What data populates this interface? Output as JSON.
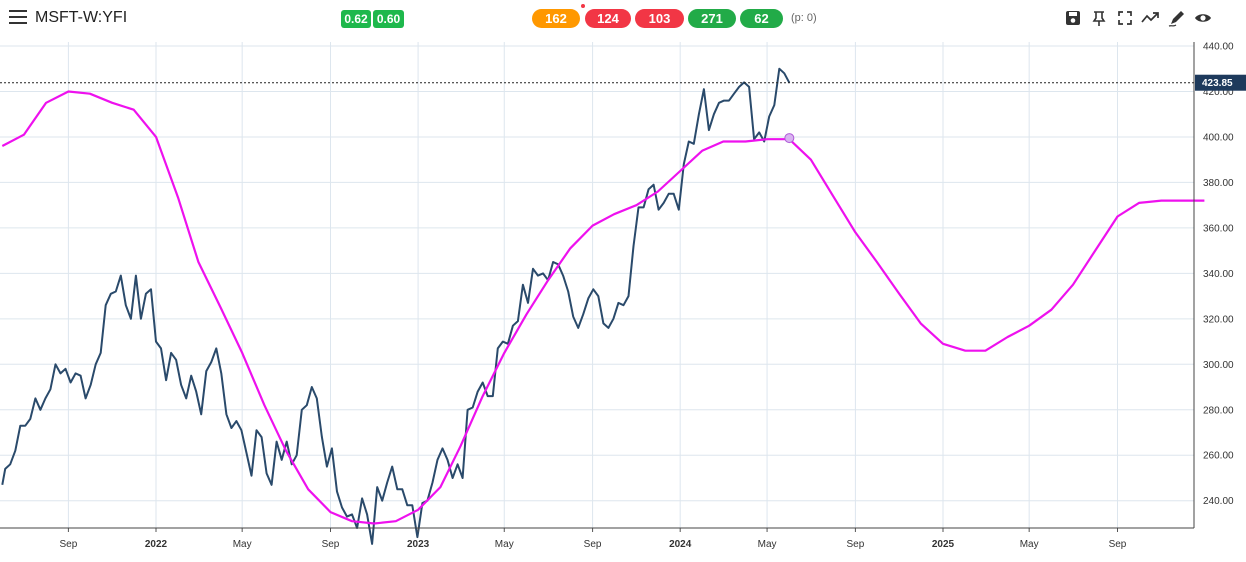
{
  "header": {
    "symbol": "MSFT-W:YFI",
    "badge1": "0.62",
    "badge2": "0.60",
    "pills": [
      {
        "label": "162",
        "color": "#ff9800"
      },
      {
        "label": "124",
        "color": "#f23645"
      },
      {
        "label": "103",
        "color": "#f23645"
      },
      {
        "label": "271",
        "color": "#22ab48"
      },
      {
        "label": "62",
        "color": "#22ab48"
      }
    ],
    "p_status": "(p: 0)",
    "tools": [
      "save-icon",
      "pin-icon",
      "fullscreen-icon",
      "trend-icon",
      "draw-icon",
      "eye-icon"
    ]
  },
  "chart_data": {
    "type": "line",
    "price_label": "423.85",
    "x_ticks": [
      {
        "label": "Sep",
        "x": "2021-09-01"
      },
      {
        "label": "2022",
        "x": "2022-01-01",
        "bold": true
      },
      {
        "label": "May",
        "x": "2022-05-01"
      },
      {
        "label": "Sep",
        "x": "2022-09-01"
      },
      {
        "label": "2023",
        "x": "2023-01-01",
        "bold": true
      },
      {
        "label": "May",
        "x": "2023-05-01"
      },
      {
        "label": "Sep",
        "x": "2023-09-01"
      },
      {
        "label": "2024",
        "x": "2024-01-01",
        "bold": true
      },
      {
        "label": "May",
        "x": "2024-05-01"
      },
      {
        "label": "Sep",
        "x": "2024-09-01"
      },
      {
        "label": "2025",
        "x": "2025-01-01",
        "bold": true
      },
      {
        "label": "May",
        "x": "2025-05-01"
      },
      {
        "label": "Sep",
        "x": "2025-09-01"
      }
    ],
    "y_ticks": [
      "440.00",
      "420.00",
      "400.00",
      "380.00",
      "360.00",
      "340.00",
      "320.00",
      "300.00",
      "280.00",
      "260.00",
      "240.00"
    ],
    "y_range": [
      220,
      442
    ],
    "x_range": [
      "2021-06-01",
      "2025-12-31"
    ],
    "colors": {
      "price": "#2a4a6b",
      "cycle": "#ee11ee",
      "grid": "#dde6ee",
      "label_bg": "#1e3a5c"
    },
    "series": [
      {
        "color": "#2a4a6b",
        "points": [
          [
            "2021-06-01",
            247
          ],
          [
            "2021-06-05",
            254
          ],
          [
            "2021-06-12",
            256
          ],
          [
            "2021-06-19",
            262
          ],
          [
            "2021-06-26",
            273
          ],
          [
            "2021-07-03",
            273
          ],
          [
            "2021-07-10",
            276
          ],
          [
            "2021-07-17",
            285
          ],
          [
            "2021-07-24",
            280
          ],
          [
            "2021-07-31",
            285
          ],
          [
            "2021-08-07",
            289
          ],
          [
            "2021-08-14",
            300
          ],
          [
            "2021-08-21",
            296
          ],
          [
            "2021-08-28",
            298
          ],
          [
            "2021-09-04",
            292
          ],
          [
            "2021-09-11",
            296
          ],
          [
            "2021-09-18",
            295
          ],
          [
            "2021-09-25",
            285
          ],
          [
            "2021-10-02",
            291
          ],
          [
            "2021-10-09",
            300
          ],
          [
            "2021-10-16",
            305
          ],
          [
            "2021-10-23",
            326
          ],
          [
            "2021-10-30",
            331
          ],
          [
            "2021-11-06",
            332
          ],
          [
            "2021-11-13",
            339
          ],
          [
            "2021-11-20",
            326
          ],
          [
            "2021-11-27",
            320
          ],
          [
            "2021-12-04",
            339
          ],
          [
            "2021-12-11",
            320
          ],
          [
            "2021-12-18",
            331
          ],
          [
            "2021-12-25",
            333
          ],
          [
            "2022-01-01",
            310
          ],
          [
            "2022-01-08",
            307
          ],
          [
            "2022-01-15",
            293
          ],
          [
            "2022-01-22",
            305
          ],
          [
            "2022-01-29",
            302
          ],
          [
            "2022-02-05",
            291
          ],
          [
            "2022-02-12",
            285
          ],
          [
            "2022-02-19",
            295
          ],
          [
            "2022-02-26",
            288
          ],
          [
            "2022-03-05",
            278
          ],
          [
            "2022-03-12",
            297
          ],
          [
            "2022-03-19",
            301
          ],
          [
            "2022-03-26",
            307
          ],
          [
            "2022-04-02",
            296
          ],
          [
            "2022-04-09",
            278
          ],
          [
            "2022-04-16",
            272
          ],
          [
            "2022-04-23",
            275
          ],
          [
            "2022-04-30",
            271
          ],
          [
            "2022-05-07",
            261
          ],
          [
            "2022-05-14",
            251
          ],
          [
            "2022-05-21",
            271
          ],
          [
            "2022-05-28",
            268
          ],
          [
            "2022-06-04",
            252
          ],
          [
            "2022-06-11",
            247
          ],
          [
            "2022-06-18",
            266
          ],
          [
            "2022-06-25",
            258
          ],
          [
            "2022-07-02",
            266
          ],
          [
            "2022-07-09",
            256
          ],
          [
            "2022-07-16",
            260
          ],
          [
            "2022-07-23",
            280
          ],
          [
            "2022-07-30",
            282
          ],
          [
            "2022-08-06",
            290
          ],
          [
            "2022-08-13",
            285
          ],
          [
            "2022-08-20",
            268
          ],
          [
            "2022-08-27",
            255
          ],
          [
            "2022-09-03",
            263
          ],
          [
            "2022-09-10",
            244
          ],
          [
            "2022-09-17",
            237
          ],
          [
            "2022-09-24",
            233
          ],
          [
            "2022-10-01",
            234
          ],
          [
            "2022-10-08",
            228
          ],
          [
            "2022-10-15",
            241
          ],
          [
            "2022-10-22",
            234
          ],
          [
            "2022-10-29",
            221
          ],
          [
            "2022-11-05",
            246
          ],
          [
            "2022-11-12",
            240
          ],
          [
            "2022-11-19",
            248
          ],
          [
            "2022-11-26",
            255
          ],
          [
            "2022-12-03",
            245
          ],
          [
            "2022-12-10",
            245
          ],
          [
            "2022-12-17",
            238
          ],
          [
            "2022-12-24",
            238
          ],
          [
            "2022-12-31",
            224
          ],
          [
            "2023-01-07",
            239
          ],
          [
            "2023-01-14",
            240
          ],
          [
            "2023-01-21",
            248
          ],
          [
            "2023-01-28",
            258
          ],
          [
            "2023-02-04",
            263
          ],
          [
            "2023-02-11",
            258
          ],
          [
            "2023-02-18",
            250
          ],
          [
            "2023-02-25",
            256
          ],
          [
            "2023-03-04",
            250
          ],
          [
            "2023-03-11",
            280
          ],
          [
            "2023-03-18",
            281
          ],
          [
            "2023-03-25",
            288
          ],
          [
            "2023-04-01",
            292
          ],
          [
            "2023-04-08",
            286
          ],
          [
            "2023-04-15",
            286
          ],
          [
            "2023-04-22",
            307
          ],
          [
            "2023-04-29",
            310
          ],
          [
            "2023-05-06",
            309
          ],
          [
            "2023-05-13",
            317
          ],
          [
            "2023-05-20",
            319
          ],
          [
            "2023-05-27",
            335
          ],
          [
            "2023-06-03",
            327
          ],
          [
            "2023-06-10",
            342
          ],
          [
            "2023-06-17",
            339
          ],
          [
            "2023-06-24",
            340
          ],
          [
            "2023-07-01",
            337
          ],
          [
            "2023-07-08",
            345
          ],
          [
            "2023-07-15",
            344
          ],
          [
            "2023-07-22",
            339
          ],
          [
            "2023-07-29",
            332
          ],
          [
            "2023-08-05",
            321
          ],
          [
            "2023-08-12",
            316
          ],
          [
            "2023-08-19",
            322
          ],
          [
            "2023-08-26",
            329
          ],
          [
            "2023-09-02",
            333
          ],
          [
            "2023-09-09",
            330
          ],
          [
            "2023-09-16",
            318
          ],
          [
            "2023-09-23",
            316
          ],
          [
            "2023-09-30",
            320
          ],
          [
            "2023-10-07",
            327
          ],
          [
            "2023-10-14",
            326
          ],
          [
            "2023-10-21",
            330
          ],
          [
            "2023-10-28",
            352
          ],
          [
            "2023-11-04",
            369
          ],
          [
            "2023-11-11",
            369
          ],
          [
            "2023-11-18",
            377
          ],
          [
            "2023-11-25",
            379
          ],
          [
            "2023-12-02",
            368
          ],
          [
            "2023-12-09",
            371
          ],
          [
            "2023-12-16",
            375
          ],
          [
            "2023-12-23",
            375
          ],
          [
            "2023-12-30",
            368
          ],
          [
            "2024-01-06",
            388
          ],
          [
            "2024-01-13",
            398
          ],
          [
            "2024-01-20",
            397
          ],
          [
            "2024-01-27",
            410
          ],
          [
            "2024-02-03",
            421
          ],
          [
            "2024-02-10",
            403
          ],
          [
            "2024-02-17",
            410
          ],
          [
            "2024-02-24",
            415
          ],
          [
            "2024-03-02",
            416
          ],
          [
            "2024-03-09",
            416
          ],
          [
            "2024-03-16",
            419
          ],
          [
            "2024-03-23",
            422
          ],
          [
            "2024-03-30",
            424
          ],
          [
            "2024-04-06",
            422
          ],
          [
            "2024-04-13",
            399
          ],
          [
            "2024-04-20",
            402
          ],
          [
            "2024-04-27",
            398
          ],
          [
            "2024-05-04",
            409
          ],
          [
            "2024-05-11",
            414
          ],
          [
            "2024-05-18",
            430
          ],
          [
            "2024-05-25",
            428
          ],
          [
            "2024-06-01",
            423.85
          ]
        ]
      },
      {
        "color": "#ee11ee",
        "points": [
          [
            "2021-06-01",
            396
          ],
          [
            "2021-07-01",
            401
          ],
          [
            "2021-08-01",
            415
          ],
          [
            "2021-09-01",
            420
          ],
          [
            "2021-10-01",
            419
          ],
          [
            "2021-11-01",
            415
          ],
          [
            "2021-12-01",
            412
          ],
          [
            "2022-01-01",
            400
          ],
          [
            "2022-02-01",
            373
          ],
          [
            "2022-03-01",
            345
          ],
          [
            "2022-04-01",
            325
          ],
          [
            "2022-05-01",
            305
          ],
          [
            "2022-06-01",
            282
          ],
          [
            "2022-07-01",
            262
          ],
          [
            "2022-08-01",
            245
          ],
          [
            "2022-09-01",
            235
          ],
          [
            "2022-10-01",
            231
          ],
          [
            "2022-11-01",
            230
          ],
          [
            "2022-12-01",
            231
          ],
          [
            "2023-01-01",
            236
          ],
          [
            "2023-02-01",
            246
          ],
          [
            "2023-03-01",
            264
          ],
          [
            "2023-04-01",
            286
          ],
          [
            "2023-05-01",
            305
          ],
          [
            "2023-06-01",
            322
          ],
          [
            "2023-07-01",
            337
          ],
          [
            "2023-08-01",
            351
          ],
          [
            "2023-09-01",
            361
          ],
          [
            "2023-10-01",
            366
          ],
          [
            "2023-11-01",
            370
          ],
          [
            "2023-12-01",
            376
          ],
          [
            "2024-01-01",
            385
          ],
          [
            "2024-02-01",
            394
          ],
          [
            "2024-03-01",
            398
          ],
          [
            "2024-04-01",
            398
          ],
          [
            "2024-05-01",
            399
          ],
          [
            "2024-06-01",
            399
          ],
          [
            "2024-07-01",
            390
          ],
          [
            "2024-08-01",
            374
          ],
          [
            "2024-09-01",
            358
          ],
          [
            "2024-10-01",
            345
          ],
          [
            "2024-11-01",
            331
          ],
          [
            "2024-12-01",
            318
          ],
          [
            "2025-01-01",
            309
          ],
          [
            "2025-02-01",
            306
          ],
          [
            "2025-03-01",
            306
          ],
          [
            "2025-04-01",
            312
          ],
          [
            "2025-05-01",
            317
          ],
          [
            "2025-06-01",
            324
          ],
          [
            "2025-07-01",
            335
          ],
          [
            "2025-08-01",
            350
          ],
          [
            "2025-09-01",
            365
          ],
          [
            "2025-10-01",
            371
          ],
          [
            "2025-11-01",
            372
          ],
          [
            "2025-12-01",
            372
          ],
          [
            "2025-12-31",
            372
          ]
        ]
      }
    ],
    "marker": {
      "x": "2024-06-01",
      "y": 399.5
    }
  }
}
